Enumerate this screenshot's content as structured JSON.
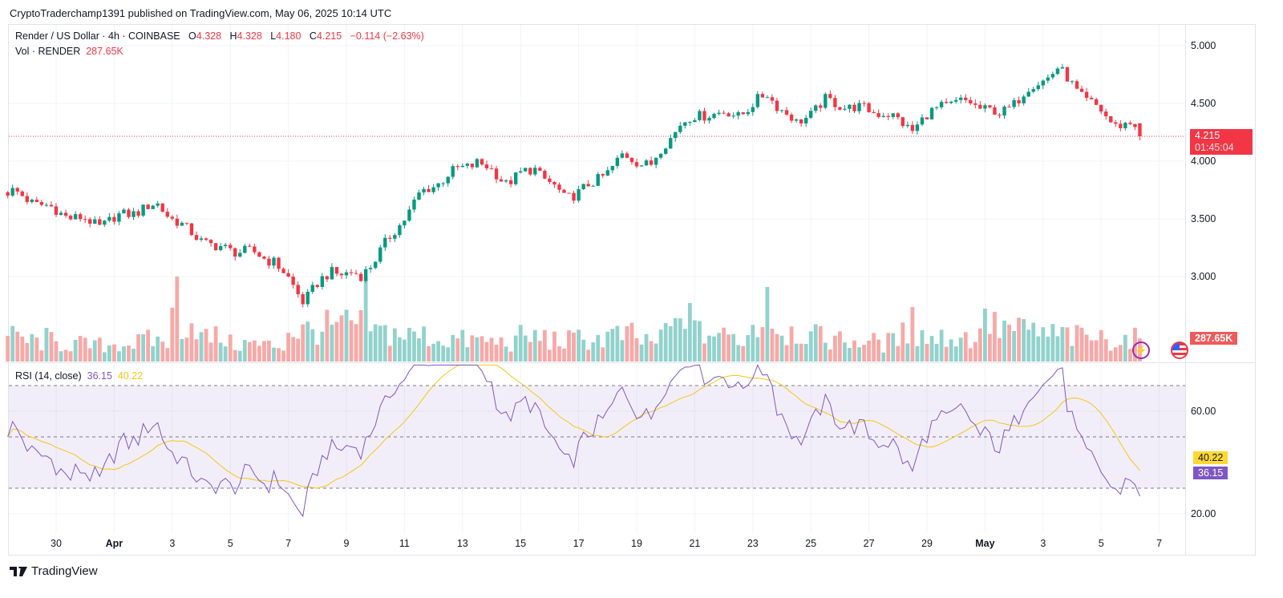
{
  "header": {
    "published": "CryptoTraderchamp1391 published on TradingView.com, May 06, 2025 10:14 UTC",
    "symbol": "Render / US Dollar · 4h · COINBASE",
    "o_label": "O",
    "o": "4.328",
    "h_label": "H",
    "h": "4.328",
    "l_label": "L",
    "l": "4.180",
    "c_label": "C",
    "c": "4.215",
    "change": "−0.114 (−2.63%)",
    "vol_label": "Vol · RENDER",
    "vol_value": "287.65K",
    "rsi_label": "RSI (14, close)",
    "rsi_value": "36.15",
    "rsi_ma_value": "40.22"
  },
  "badges": {
    "price": "4.215",
    "countdown": "01:45:04",
    "volume": "287.65K",
    "rsi": "36.15",
    "rsi_ma": "40.22"
  },
  "footer": {
    "brand": "TradingView"
  },
  "icons": [
    "lightning-icon",
    "us-flag-icon"
  ],
  "colors": {
    "up": "#089981",
    "down": "#F23645",
    "vol_up": "#92D2CC",
    "vol_down": "#F7A9A7",
    "rsi": "#7E57C2",
    "rsi_ma": "#F5C518"
  },
  "chart_data": [
    {
      "type": "candlestick",
      "title": "Render / US Dollar · 4h · COINBASE",
      "interval_hours": 4,
      "ylim": [
        2.45,
        5.1
      ],
      "y_ticks": [
        "5.000",
        "4.500",
        "4.000",
        "3.500",
        "3.000"
      ],
      "y_tick_values": [
        5.0,
        4.5,
        4.0,
        3.5,
        3.0
      ],
      "x_tick_labels": [
        "30",
        "Apr",
        "3",
        "5",
        "7",
        "9",
        "11",
        "13",
        "15",
        "17",
        "19",
        "21",
        "23",
        "25",
        "27",
        "29",
        "May",
        "3",
        "5",
        "7"
      ],
      "x_tick_day_index": [
        2,
        4,
        6,
        8,
        10,
        12,
        14,
        16,
        18,
        20,
        22,
        24,
        26,
        28,
        30,
        32,
        34,
        36,
        38,
        40
      ],
      "day_index_origin": "Mar 28",
      "approx_daily_close": [
        3.73,
        3.62,
        3.52,
        3.45,
        3.55,
        3.62,
        3.4,
        3.25,
        3.22,
        3.14,
        2.8,
        3.05,
        3.0,
        3.33,
        3.7,
        3.88,
        4.0,
        3.82,
        3.94,
        3.68,
        3.8,
        4.04,
        3.97,
        4.33,
        4.42,
        4.4,
        4.58,
        4.32,
        4.52,
        4.46,
        4.42,
        4.28,
        4.49,
        4.51,
        4.4,
        4.62,
        4.8,
        4.53,
        4.32,
        4.3
      ],
      "last_candle": {
        "open": 4.328,
        "high": 4.328,
        "low": 4.18,
        "close": 4.215
      },
      "last_price": 4.215
    },
    {
      "type": "bar",
      "title": "Vol · RENDER",
      "unit": "K",
      "approx_daily_avg_volume": [
        300,
        250,
        220,
        200,
        230,
        260,
        500,
        300,
        220,
        200,
        380,
        420,
        450,
        360,
        320,
        280,
        260,
        240,
        300,
        260,
        280,
        320,
        260,
        420,
        350,
        300,
        480,
        380,
        300,
        260,
        240,
        330,
        300,
        300,
        420,
        380,
        330,
        300,
        280,
        290
      ],
      "spikes": [
        {
          "day_index": 6,
          "hour": 4,
          "value": 1060
        },
        {
          "day_index": 12,
          "hour": 16,
          "value": 1060
        },
        {
          "day_index": 23,
          "hour": 20,
          "value": 730
        },
        {
          "day_index": 26,
          "hour": 12,
          "value": 930
        },
        {
          "day_index": 31,
          "hour": 12,
          "value": 680
        },
        {
          "day_index": 34,
          "hour": 0,
          "value": 660
        },
        {
          "day_index": 1,
          "hour": 16,
          "value": 420
        }
      ],
      "last_value": 287.65
    },
    {
      "type": "line",
      "title": "RSI (14, close)",
      "ylim": [
        15,
        78
      ],
      "y_ticks": [
        "60.00",
        "20.00"
      ],
      "y_tick_values": [
        60,
        20
      ],
      "bands": [
        70,
        50,
        30
      ],
      "series": [
        {
          "name": "RSI",
          "last": 36.15
        },
        {
          "name": "RSI-based MA",
          "last": 40.22
        }
      ]
    }
  ]
}
